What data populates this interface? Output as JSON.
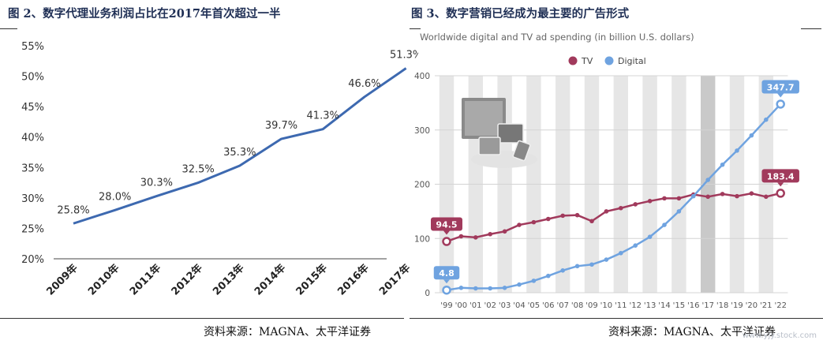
{
  "left": {
    "figure_title": "图 2、数字代理业务利润占比在2017年首次超过一半",
    "source": "资料来源：MAGNA、太平洋证券",
    "colors": {
      "line": "#3d69b0",
      "text": "#333333",
      "axis": "#444444"
    },
    "chart_data": {
      "type": "line",
      "categories": [
        "2009年",
        "2010年",
        "2011年",
        "2012年",
        "2013年",
        "2014年",
        "2015年",
        "2016年",
        "2017年"
      ],
      "values": [
        25.8,
        28.0,
        30.3,
        32.5,
        35.3,
        39.7,
        41.3,
        46.6,
        51.3
      ],
      "data_labels": [
        "25.8%",
        "28.0%",
        "30.3%",
        "32.5%",
        "35.3%",
        "39.7%",
        "41.3%",
        "46.6%",
        "51.3%"
      ],
      "y_ticks": [
        "20%",
        "25%",
        "30%",
        "35%",
        "40%",
        "45%",
        "50%",
        "55%"
      ],
      "ylim": [
        20,
        55
      ],
      "grid": false,
      "legend": "none"
    }
  },
  "right": {
    "figure_title": "图 3、数字营销已经成为最主要的广告形式",
    "source": "资料来源：MAGNA、太平洋证券",
    "watermark": "www.yjy.stock.com",
    "colors": {
      "tv": "#a13a5c",
      "digital": "#6fa3e0",
      "band": "#e6e6e6",
      "band_dark": "#c9c9c9",
      "label": "#555555"
    },
    "icon": "tv-and-devices-icon",
    "chart_data": {
      "type": "line",
      "title": "Worldwide digital and TV ad spending (in billion U.S. dollars)",
      "categories": [
        "'99",
        "'00",
        "'01",
        "'02",
        "'03",
        "'04",
        "'05",
        "'06",
        "'07",
        "'08",
        "'09",
        "'10",
        "'11",
        "'12",
        "'13",
        "'14",
        "'15",
        "'16",
        "'17",
        "'18",
        "'19",
        "'20",
        "'21",
        "'22"
      ],
      "series": [
        {
          "name": "TV",
          "values": [
            94.5,
            104,
            102,
            108,
            113,
            125,
            130,
            136,
            142,
            143,
            132,
            150,
            156,
            163,
            169,
            174,
            174,
            181,
            177,
            182,
            178,
            183,
            177,
            183.4
          ]
        },
        {
          "name": "Digital",
          "values": [
            4.8,
            9,
            8,
            8,
            9,
            15,
            22,
            31,
            41,
            49,
            52,
            61,
            73,
            87,
            103,
            125,
            150,
            178,
            208,
            236,
            262,
            290,
            319,
            347.7
          ]
        }
      ],
      "callouts": [
        {
          "series": "TV",
          "index": 0,
          "text": "94.5"
        },
        {
          "series": "TV",
          "index": 23,
          "text": "183.4"
        },
        {
          "series": "Digital",
          "index": 0,
          "text": "4.8"
        },
        {
          "series": "Digital",
          "index": 23,
          "text": "347.7"
        }
      ],
      "y_ticks": [
        "0",
        "100",
        "200",
        "300",
        "400"
      ],
      "ylim": [
        0,
        400
      ],
      "highlighted_category": "'17",
      "grid": "alternating vertical bands",
      "legend": "top"
    }
  }
}
